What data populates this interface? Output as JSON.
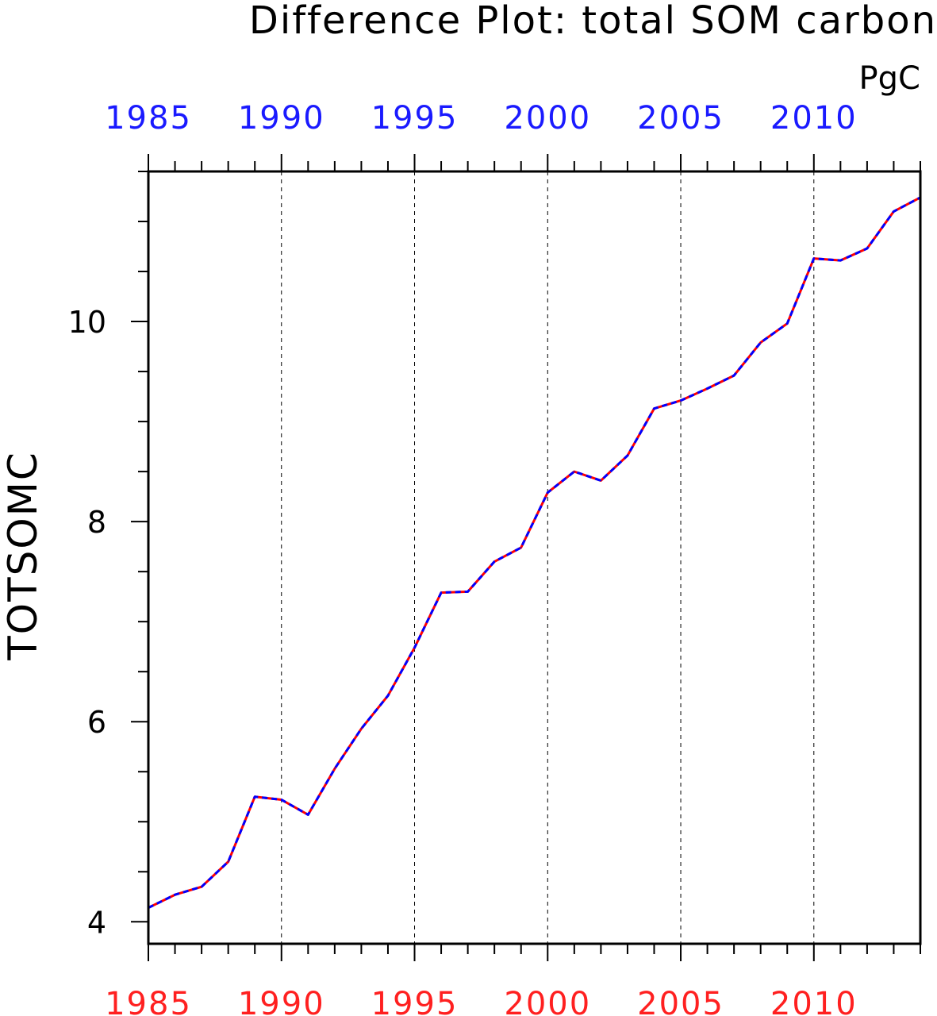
{
  "title": "Difference Plot: total SOM carbon",
  "units": "PgC",
  "colors": {
    "series_a": "#ff0000",
    "series_b": "#0000ff",
    "top_ticks": "#1a1aff",
    "bottom_ticks": "#ff2020",
    "grid": "#000000"
  },
  "chart_data": {
    "type": "line",
    "title": "Difference Plot: total SOM carbon",
    "units": "PgC",
    "xlabel": "",
    "ylabel": "TOTSOMC",
    "xlim": [
      1985,
      2014
    ],
    "ylim": [
      3.78,
      11.5
    ],
    "x_ticks": [
      1985,
      1990,
      1995,
      2000,
      2005,
      2010
    ],
    "x_tick_labels_top": [
      "1985",
      "1990",
      "1995",
      "2000",
      "2005",
      "2010"
    ],
    "x_tick_labels_bottom": [
      "1985",
      "1990",
      "1995",
      "2000",
      "2005",
      "2010"
    ],
    "y_ticks": [
      4,
      6,
      8,
      10
    ],
    "y_tick_labels": [
      "4",
      "6",
      "8",
      "10"
    ],
    "grid": "vertical dashed at major x ticks",
    "x": [
      1985,
      1986,
      1987,
      1988,
      1989,
      1990,
      1991,
      1992,
      1993,
      1994,
      1995,
      1996,
      1997,
      1998,
      1999,
      2000,
      2001,
      2002,
      2003,
      2004,
      2005,
      2006,
      2007,
      2008,
      2009,
      2010,
      2011,
      2012,
      2013,
      2014
    ],
    "series": [
      {
        "color": "#ff0000",
        "style": "solid",
        "values": [
          4.14,
          4.27,
          4.35,
          4.6,
          5.25,
          5.22,
          5.07,
          5.53,
          5.93,
          6.26,
          6.74,
          7.29,
          7.3,
          7.6,
          7.74,
          8.29,
          8.5,
          8.41,
          8.66,
          9.13,
          9.21,
          9.33,
          9.46,
          9.79,
          9.98,
          10.63,
          10.61,
          10.73,
          11.1,
          11.24
        ]
      },
      {
        "color": "#0000ff",
        "style": "dashed",
        "values": [
          4.14,
          4.27,
          4.35,
          4.6,
          5.25,
          5.22,
          5.07,
          5.53,
          5.93,
          6.26,
          6.74,
          7.29,
          7.3,
          7.6,
          7.74,
          8.29,
          8.5,
          8.41,
          8.66,
          9.13,
          9.21,
          9.33,
          9.46,
          9.79,
          9.98,
          10.63,
          10.61,
          10.73,
          11.1,
          11.24
        ]
      }
    ]
  }
}
